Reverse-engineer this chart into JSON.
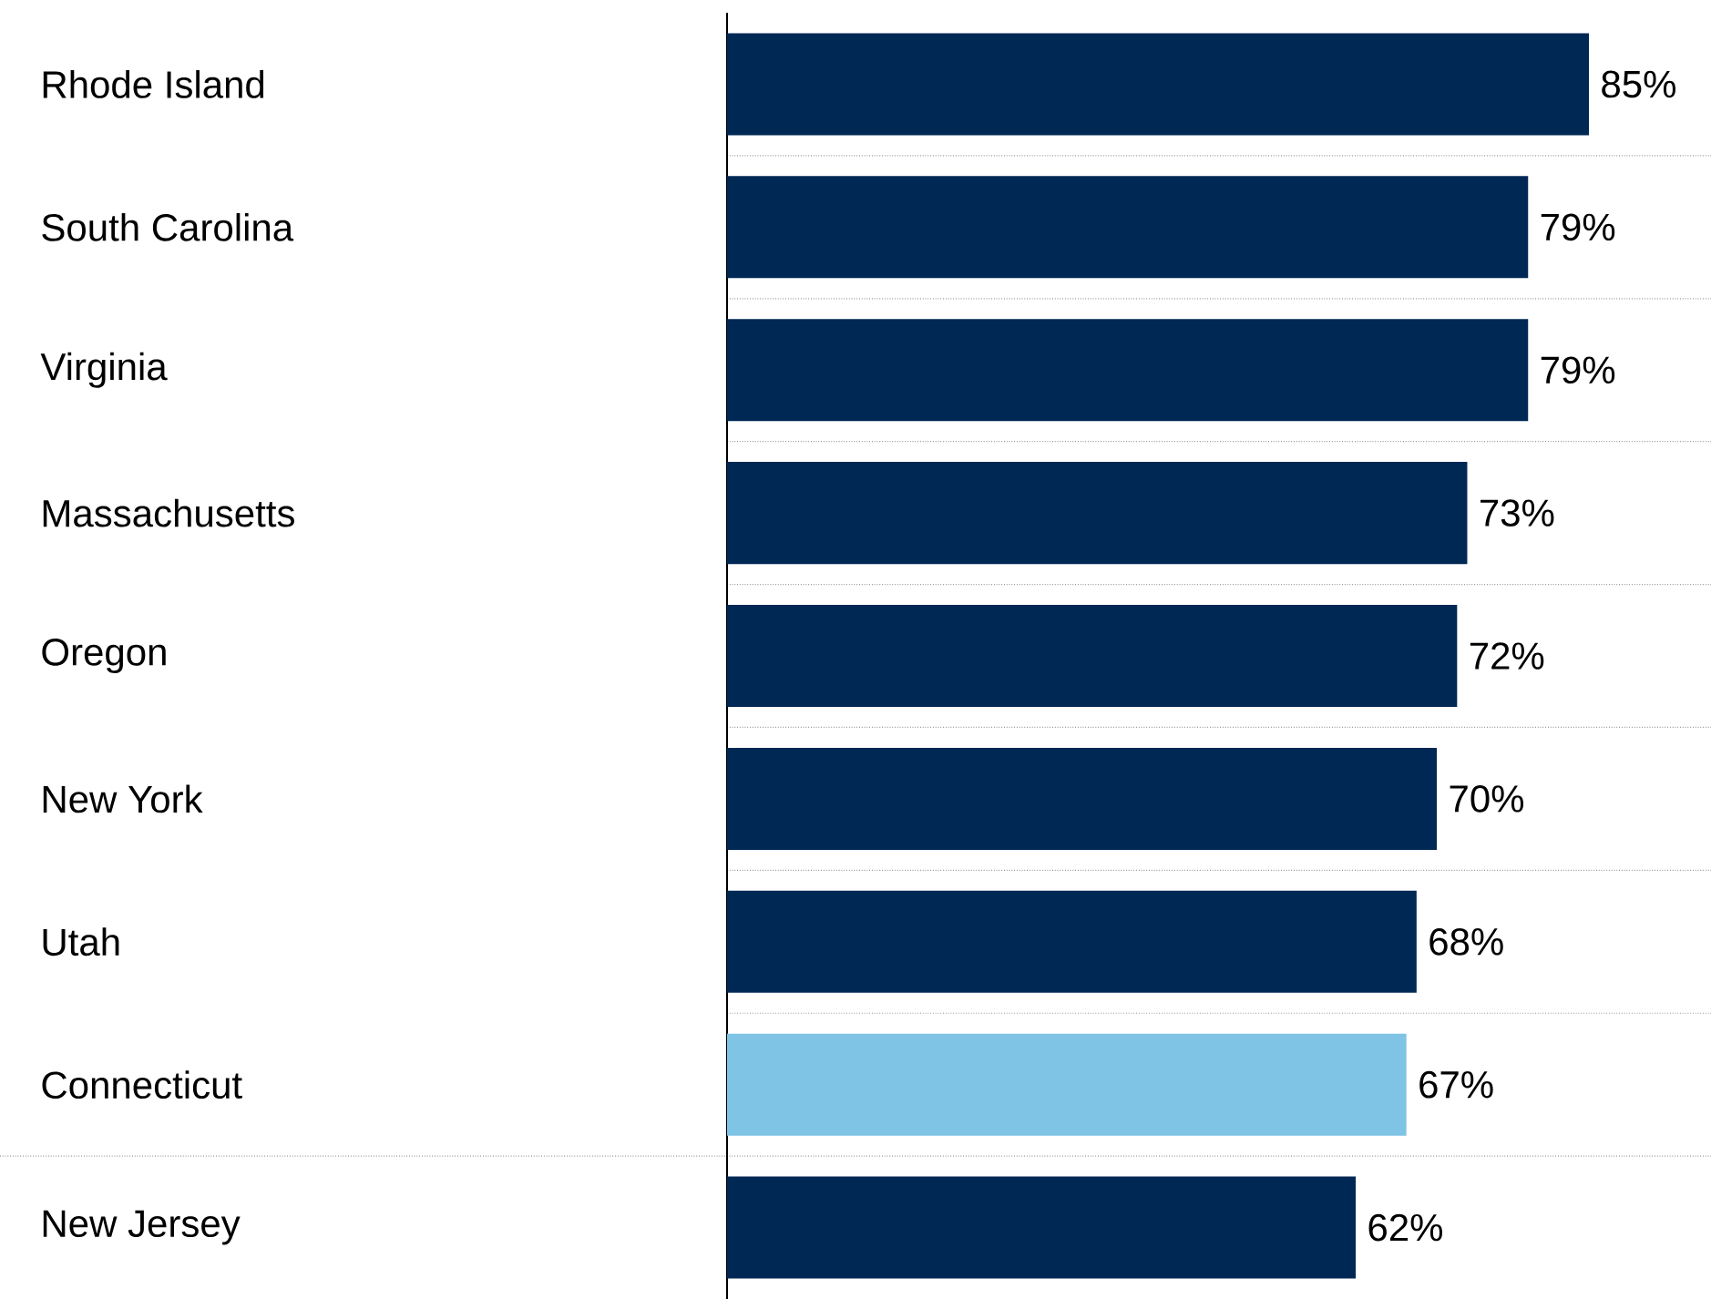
{
  "chart_data": {
    "type": "bar",
    "orientation": "horizontal",
    "categories": [
      "Rhode Island",
      "South Carolina",
      "Virginia",
      "Massachusetts",
      "Oregon",
      "New York",
      "Utah",
      "Connecticut",
      "New Jersey"
    ],
    "values": [
      85,
      79,
      79,
      73,
      72,
      70,
      68,
      67,
      62
    ],
    "value_labels": [
      "85%",
      "79%",
      "79%",
      "73%",
      "72%",
      "70%",
      "68%",
      "67%",
      "62%"
    ],
    "colors": [
      "#002855",
      "#002855",
      "#002855",
      "#002855",
      "#002855",
      "#002855",
      "#002855",
      "#7fc4e5",
      "#002855"
    ],
    "tick_labels": "y",
    "grid": true
  }
}
